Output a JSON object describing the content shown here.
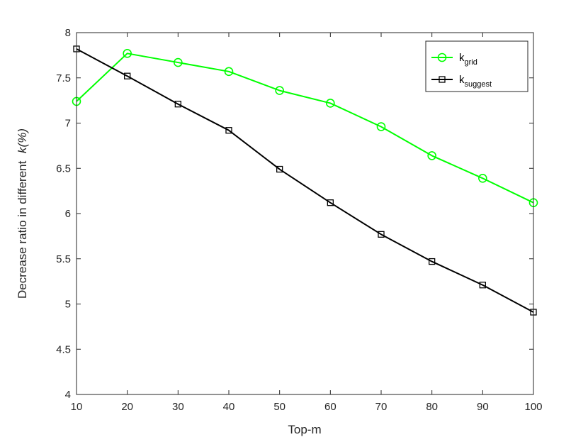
{
  "chart_data": {
    "type": "line",
    "xlabel": "Top-m",
    "ylabel": "Decrease ratio in different",
    "ylabel_var": "k(%)",
    "xlim": [
      10,
      100
    ],
    "ylim": [
      4,
      8
    ],
    "xticks": [
      10,
      20,
      30,
      40,
      50,
      60,
      70,
      80,
      90,
      100
    ],
    "yticks": [
      4,
      4.5,
      5,
      5.5,
      6,
      6.5,
      7,
      7.5,
      8
    ],
    "grid": false,
    "legend_position": "top-right",
    "x": [
      10,
      20,
      30,
      40,
      50,
      60,
      70,
      80,
      90,
      100
    ],
    "series": [
      {
        "base": "k",
        "sub": "grid",
        "color": "#00ff00",
        "marker": "circle",
        "values": [
          7.24,
          7.77,
          7.67,
          7.57,
          7.36,
          7.22,
          6.96,
          6.64,
          6.39,
          6.12
        ]
      },
      {
        "base": "k",
        "sub": "suggest",
        "color": "#000000",
        "marker": "square",
        "values": [
          7.82,
          7.52,
          7.21,
          6.92,
          6.49,
          6.12,
          5.77,
          5.47,
          5.21,
          4.91
        ]
      }
    ]
  }
}
